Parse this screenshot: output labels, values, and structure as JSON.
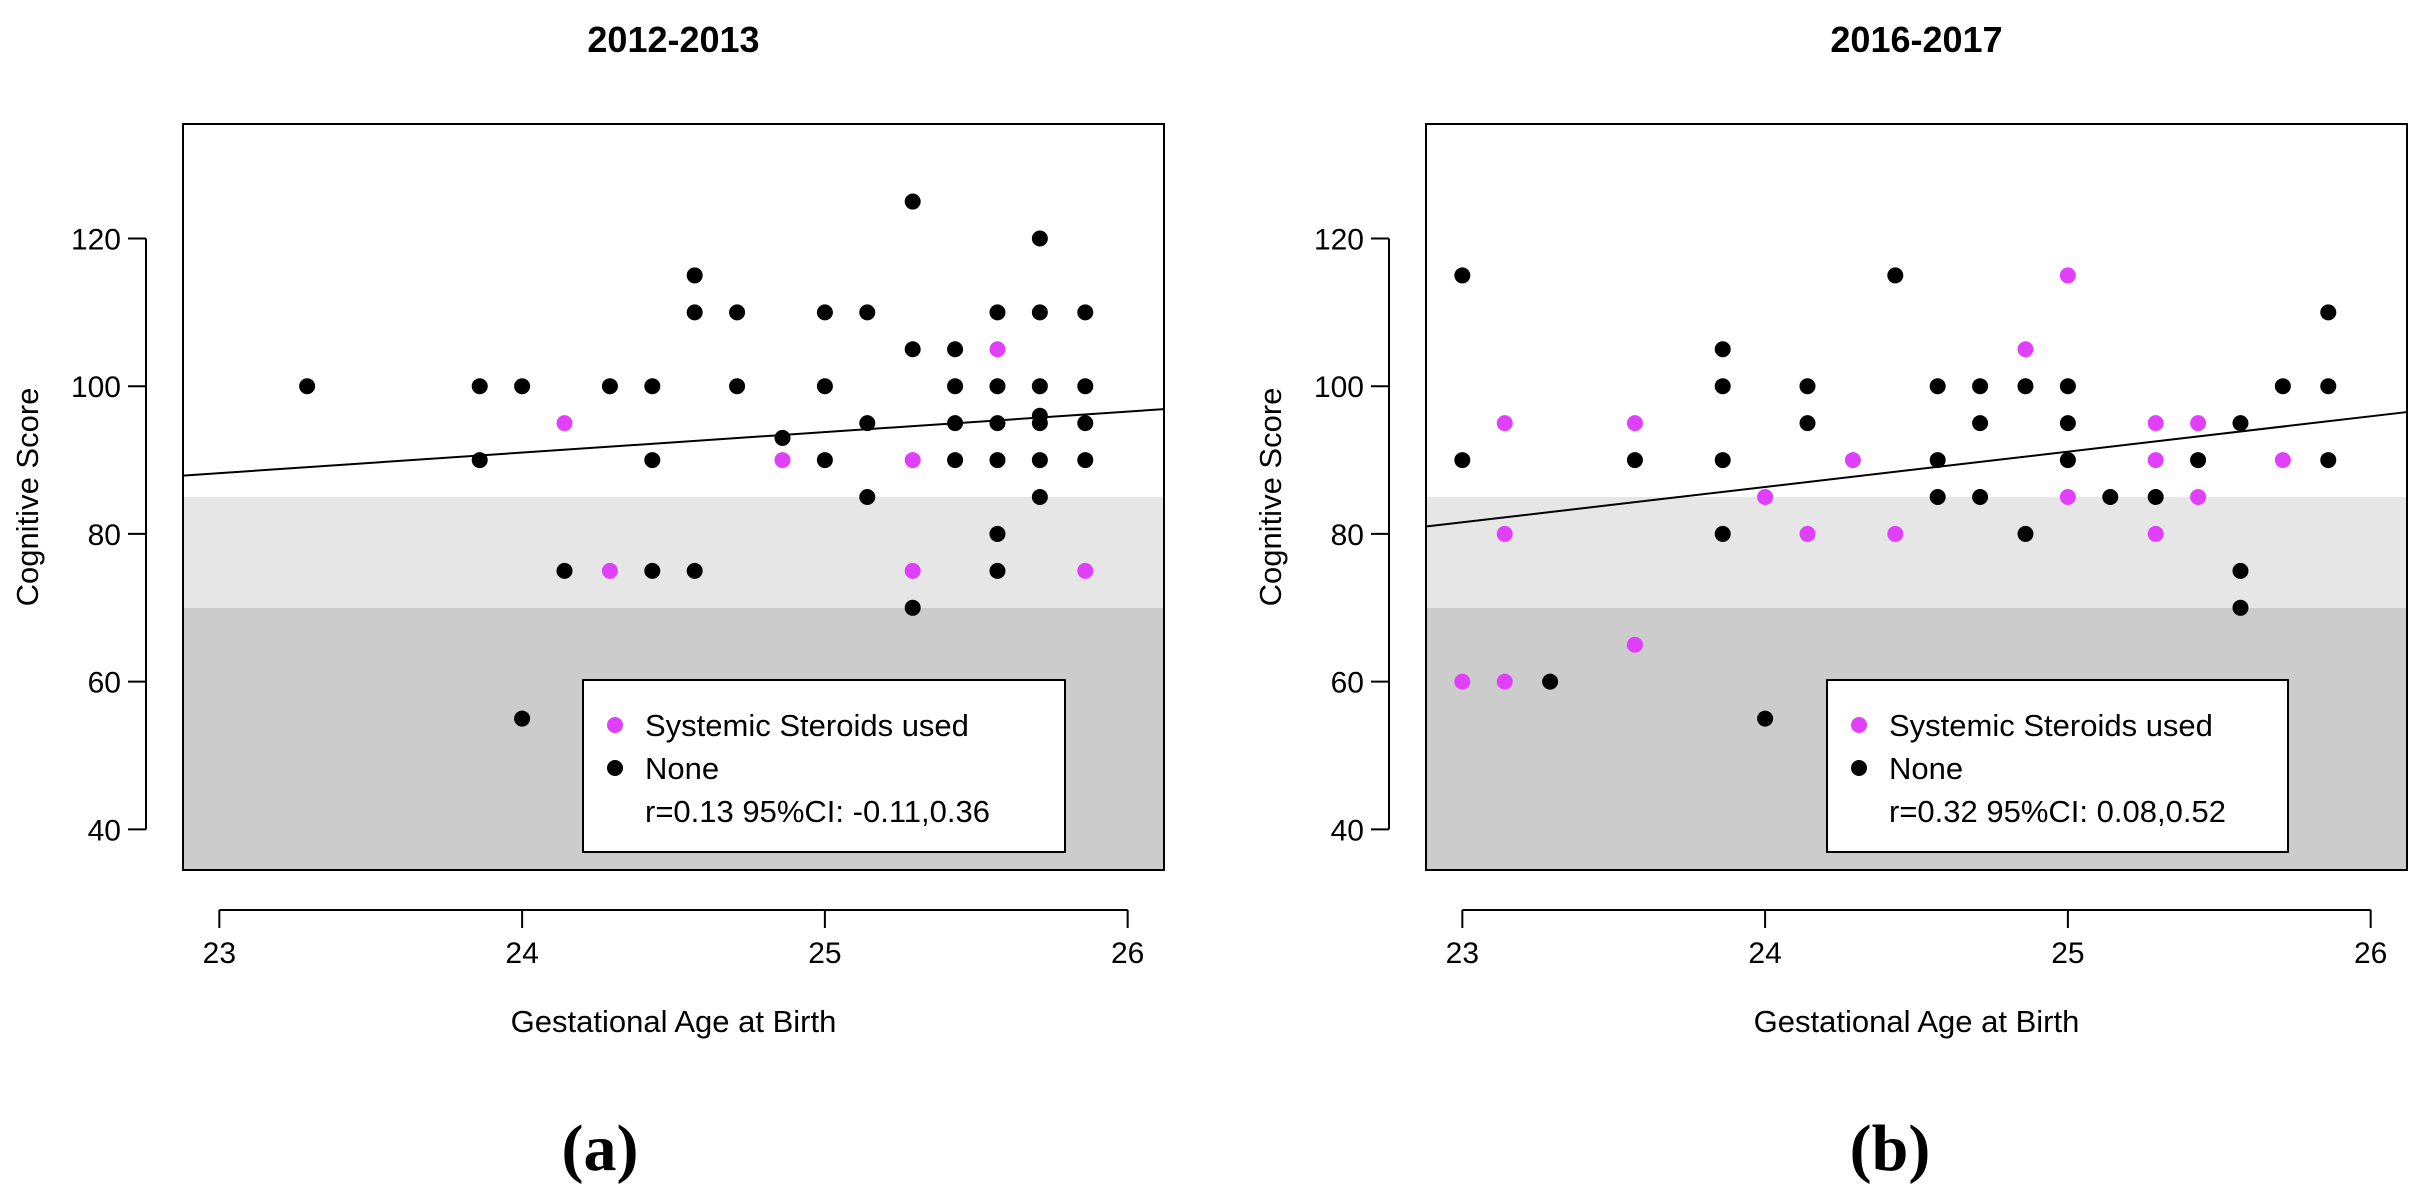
{
  "figure": {
    "panel_labels": [
      "(a)",
      "(b)"
    ]
  },
  "colors": {
    "steroid": "#e040fb",
    "none": "#000000",
    "band_light": "#e6e6e6",
    "band_dark": "#cccccc"
  },
  "chart_data": [
    {
      "type": "scatter",
      "title": "2012-2013",
      "xlabel": "Gestational Age at Birth",
      "ylabel": "Cognitive Score",
      "xlim": [
        22.88,
        26.12
      ],
      "ylim": [
        34.5,
        135.5
      ],
      "xticks": [
        23,
        24,
        25,
        26
      ],
      "yticks": [
        40,
        60,
        80,
        100,
        120
      ],
      "bands": [
        {
          "from": 34.5,
          "to": 70,
          "shade": "dark"
        },
        {
          "from": 70,
          "to": 85,
          "shade": "light"
        }
      ],
      "fit_line": {
        "x": [
          22.88,
          26.12
        ],
        "y": [
          87.9,
          96.9
        ]
      },
      "legend": {
        "position": "bottom-right",
        "entries": [
          "Systemic Steroids used",
          "None"
        ],
        "stat": "r=0.13 95%CI: -0.11,0.36"
      },
      "series": [
        {
          "name": "Systemic Steroids used",
          "points": [
            [
              24.14,
              95
            ],
            [
              24.29,
              75
            ],
            [
              24.86,
              90
            ],
            [
              25.29,
              90
            ],
            [
              25.29,
              75
            ],
            [
              25.57,
              105
            ],
            [
              25.86,
              75
            ]
          ]
        },
        {
          "name": "None",
          "points": [
            [
              23.29,
              100
            ],
            [
              23.86,
              100
            ],
            [
              23.86,
              90
            ],
            [
              24.0,
              100
            ],
            [
              24.0,
              55
            ],
            [
              24.14,
              75
            ],
            [
              24.29,
              100
            ],
            [
              24.43,
              100
            ],
            [
              24.43,
              90
            ],
            [
              24.43,
              75
            ],
            [
              24.57,
              115
            ],
            [
              24.57,
              110
            ],
            [
              24.57,
              75
            ],
            [
              24.71,
              110
            ],
            [
              24.71,
              100
            ],
            [
              24.86,
              93
            ],
            [
              25.0,
              110
            ],
            [
              25.0,
              100
            ],
            [
              25.0,
              90
            ],
            [
              25.14,
              110
            ],
            [
              25.14,
              95
            ],
            [
              25.14,
              85
            ],
            [
              25.29,
              125
            ],
            [
              25.29,
              105
            ],
            [
              25.29,
              70
            ],
            [
              25.43,
              105
            ],
            [
              25.43,
              100
            ],
            [
              25.43,
              95
            ],
            [
              25.43,
              90
            ],
            [
              25.57,
              110
            ],
            [
              25.57,
              100
            ],
            [
              25.57,
              95
            ],
            [
              25.57,
              90
            ],
            [
              25.57,
              80
            ],
            [
              25.57,
              75
            ],
            [
              25.71,
              120
            ],
            [
              25.71,
              110
            ],
            [
              25.71,
              100
            ],
            [
              25.71,
              96
            ],
            [
              25.71,
              95
            ],
            [
              25.71,
              90
            ],
            [
              25.71,
              85
            ],
            [
              25.86,
              110
            ],
            [
              25.86,
              100
            ],
            [
              25.86,
              95
            ],
            [
              25.86,
              90
            ]
          ]
        }
      ]
    },
    {
      "type": "scatter",
      "title": "2016-2017",
      "xlabel": "Gestational Age at Birth",
      "ylabel": "Cognitive Score",
      "xlim": [
        22.88,
        26.12
      ],
      "ylim": [
        34.5,
        135.5
      ],
      "xticks": [
        23,
        24,
        25,
        26
      ],
      "yticks": [
        40,
        60,
        80,
        100,
        120
      ],
      "bands": [
        {
          "from": 34.5,
          "to": 70,
          "shade": "dark"
        },
        {
          "from": 70,
          "to": 85,
          "shade": "light"
        }
      ],
      "fit_line": {
        "x": [
          22.88,
          26.12
        ],
        "y": [
          81.0,
          96.5
        ]
      },
      "legend": {
        "position": "bottom-right",
        "entries": [
          "Systemic Steroids used",
          "None"
        ],
        "stat": "r=0.32 95%CI: 0.08,0.52"
      },
      "series": [
        {
          "name": "Systemic Steroids used",
          "points": [
            [
              23.0,
              60
            ],
            [
              23.14,
              95
            ],
            [
              23.14,
              80
            ],
            [
              23.14,
              60
            ],
            [
              23.57,
              95
            ],
            [
              23.57,
              65
            ],
            [
              24.0,
              85
            ],
            [
              24.14,
              80
            ],
            [
              24.29,
              90
            ],
            [
              24.43,
              80
            ],
            [
              24.86,
              105
            ],
            [
              25.0,
              115
            ],
            [
              25.0,
              85
            ],
            [
              25.29,
              95
            ],
            [
              25.29,
              90
            ],
            [
              25.29,
              80
            ],
            [
              25.43,
              95
            ],
            [
              25.43,
              85
            ],
            [
              25.71,
              90
            ]
          ]
        },
        {
          "name": "None",
          "points": [
            [
              23.0,
              115
            ],
            [
              23.0,
              90
            ],
            [
              23.29,
              60
            ],
            [
              23.57,
              90
            ],
            [
              23.86,
              105
            ],
            [
              23.86,
              100
            ],
            [
              23.86,
              90
            ],
            [
              23.86,
              80
            ],
            [
              24.0,
              55
            ],
            [
              24.14,
              100
            ],
            [
              24.14,
              95
            ],
            [
              24.43,
              115
            ],
            [
              24.57,
              100
            ],
            [
              24.57,
              90
            ],
            [
              24.57,
              85
            ],
            [
              24.71,
              100
            ],
            [
              24.71,
              95
            ],
            [
              24.71,
              85
            ],
            [
              24.86,
              100
            ],
            [
              24.86,
              80
            ],
            [
              25.0,
              100
            ],
            [
              25.0,
              95
            ],
            [
              25.0,
              90
            ],
            [
              25.14,
              85
            ],
            [
              25.29,
              85
            ],
            [
              25.43,
              90
            ],
            [
              25.57,
              95
            ],
            [
              25.57,
              75
            ],
            [
              25.57,
              70
            ],
            [
              25.71,
              100
            ],
            [
              25.86,
              110
            ],
            [
              25.86,
              100
            ],
            [
              25.86,
              90
            ]
          ]
        }
      ]
    }
  ]
}
